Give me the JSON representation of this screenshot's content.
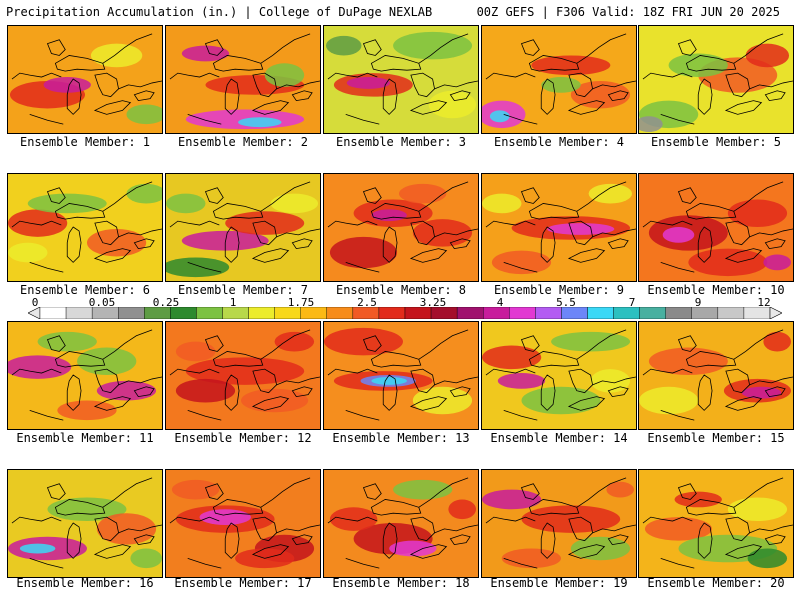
{
  "header": {
    "title": "Precipitation Accumulation (in.) | College of DuPage NEXLAB",
    "run_info": "00Z GEFS | F306 Valid: 18Z FRI JUN 20 2025"
  },
  "colorbar": {
    "labels": [
      "0",
      "0.05",
      "0.25",
      "1",
      "1.75",
      "2.5",
      "3.25",
      "4",
      "5.5",
      "7",
      "9",
      "12"
    ],
    "colors": [
      "#ffffff",
      "#d8d8d8",
      "#b4b4b4",
      "#909090",
      "#5e9c44",
      "#2e8a2e",
      "#7cc242",
      "#b8d84a",
      "#ecec2c",
      "#f8d81a",
      "#fbb915",
      "#f78c1a",
      "#f15a24",
      "#e22b1b",
      "#c4141c",
      "#a40e2c",
      "#a0126e",
      "#c81c9c",
      "#e238d2",
      "#b35cf2",
      "#6c86f8",
      "#3ad8f6",
      "#2cc0c0",
      "#48b0a0",
      "#8a8a8a",
      "#a8a8a8",
      "#c8c8c8",
      "#e4e4e4"
    ]
  },
  "panels": [
    {
      "label": "Ensemble Member: 1",
      "bg": "#f4a21a"
    },
    {
      "label": "Ensemble Member: 2",
      "bg": "#f39a1a"
    },
    {
      "label": "Ensemble Member: 3",
      "bg": "#d6dc3a"
    },
    {
      "label": "Ensemble Member: 4",
      "bg": "#f5a81a"
    },
    {
      "label": "Ensemble Member: 5",
      "bg": "#e9e22c"
    },
    {
      "label": "Ensemble Member: 6",
      "bg": "#f1d01e"
    },
    {
      "label": "Ensemble Member: 7",
      "bg": "#e7c822"
    },
    {
      "label": "Ensemble Member: 8",
      "bg": "#f58a1e"
    },
    {
      "label": "Ensemble Member: 9",
      "bg": "#f5a01a"
    },
    {
      "label": "Ensemble Member: 10",
      "bg": "#f4761e"
    },
    {
      "label": "Ensemble Member: 11",
      "bg": "#f4b81a"
    },
    {
      "label": "Ensemble Member: 12",
      "bg": "#f3781e"
    },
    {
      "label": "Ensemble Member: 13",
      "bg": "#f58e1e"
    },
    {
      "label": "Ensemble Member: 14",
      "bg": "#f0c81e"
    },
    {
      "label": "Ensemble Member: 15",
      "bg": "#f3b01a"
    },
    {
      "label": "Ensemble Member: 16",
      "bg": "#e9ca22"
    },
    {
      "label": "Ensemble Member: 17",
      "bg": "#f27e1e"
    },
    {
      "label": "Ensemble Member: 18",
      "bg": "#f38a1e"
    },
    {
      "label": "Ensemble Member: 19",
      "bg": "#f29a1a"
    },
    {
      "label": "Ensemble Member: 20",
      "bg": "#f4b41a"
    }
  ]
}
